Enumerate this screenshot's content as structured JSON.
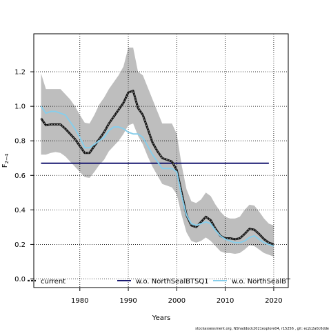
{
  "chart_data": {
    "type": "line",
    "xlabel": "Years",
    "ylabel_main": "F",
    "ylabel_sub": "2−4",
    "xlim": [
      1970.5,
      2023
    ],
    "ylim": [
      -0.05,
      1.42
    ],
    "xticks": [
      1980,
      1990,
      2000,
      2010,
      2020
    ],
    "yticks": [
      0.0,
      0.2,
      0.4,
      0.6,
      0.8,
      1.0,
      1.2
    ],
    "ytick_labels": [
      "0.0",
      "0.2",
      "0.4",
      "0.6",
      "0.8",
      "1.0",
      "1.2"
    ],
    "grid": true,
    "legend_position": "bottom",
    "x": [
      1972,
      1973,
      1974,
      1975,
      1976,
      1977,
      1978,
      1979,
      1980,
      1981,
      1982,
      1983,
      1984,
      1985,
      1986,
      1987,
      1988,
      1989,
      1990,
      1991,
      1992,
      1993,
      1994,
      1995,
      1996,
      1997,
      1998,
      1999,
      2000,
      2001,
      2002,
      2003,
      2004,
      2005,
      2006,
      2007,
      2008,
      2009,
      2010,
      2011,
      2012,
      2013,
      2014,
      2015,
      2016,
      2017,
      2018,
      2019,
      2020
    ],
    "series": [
      {
        "name": "current",
        "color": "#1a1a1a",
        "style": "dashed-thick",
        "values": [
          0.93,
          0.89,
          0.895,
          0.895,
          0.895,
          0.87,
          0.84,
          0.81,
          0.77,
          0.73,
          0.73,
          0.77,
          0.81,
          0.85,
          0.9,
          0.94,
          0.98,
          1.02,
          1.08,
          1.09,
          0.99,
          0.95,
          0.87,
          0.79,
          0.74,
          0.7,
          0.69,
          0.68,
          0.63,
          0.5,
          0.37,
          0.31,
          0.3,
          0.33,
          0.36,
          0.34,
          0.29,
          0.25,
          0.235,
          0.235,
          0.23,
          0.235,
          0.26,
          0.29,
          0.285,
          0.26,
          0.23,
          0.21,
          0.2
        ],
        "lower": [
          0.72,
          0.72,
          0.73,
          0.735,
          0.73,
          0.71,
          0.68,
          0.65,
          0.62,
          0.59,
          0.585,
          0.62,
          0.66,
          0.69,
          0.74,
          0.77,
          0.8,
          0.84,
          0.89,
          0.9,
          0.83,
          0.78,
          0.71,
          0.65,
          0.6,
          0.55,
          0.54,
          0.53,
          0.49,
          0.37,
          0.27,
          0.22,
          0.21,
          0.22,
          0.24,
          0.22,
          0.19,
          0.16,
          0.15,
          0.15,
          0.145,
          0.15,
          0.17,
          0.195,
          0.19,
          0.17,
          0.15,
          0.14,
          0.13
        ],
        "upper": [
          1.19,
          1.1,
          1.1,
          1.1,
          1.1,
          1.07,
          1.04,
          1.0,
          0.95,
          0.905,
          0.9,
          0.95,
          1.01,
          1.05,
          1.1,
          1.14,
          1.18,
          1.23,
          1.34,
          1.34,
          1.2,
          1.18,
          1.11,
          1.04,
          0.97,
          0.9,
          0.9,
          0.9,
          0.84,
          0.66,
          0.52,
          0.45,
          0.44,
          0.46,
          0.5,
          0.48,
          0.43,
          0.39,
          0.36,
          0.35,
          0.35,
          0.36,
          0.4,
          0.43,
          0.425,
          0.39,
          0.35,
          0.32,
          0.31
        ]
      },
      {
        "name": "w.o. NorthSealBTSQ1",
        "color": "#191970",
        "style": "solid",
        "values": [
          0.67,
          0.67,
          0.67,
          0.67,
          0.67,
          0.67,
          0.67,
          0.67,
          0.67,
          0.67,
          0.67,
          0.67,
          0.67,
          0.67,
          0.67,
          0.67,
          0.67,
          0.67,
          0.67,
          0.67,
          0.67,
          0.67,
          0.67,
          0.67,
          0.67,
          0.67,
          0.67,
          0.67,
          0.67,
          0.67,
          0.67,
          0.67,
          0.67,
          0.67,
          0.67,
          0.67,
          0.67,
          0.67,
          0.67,
          0.67,
          0.67,
          0.67,
          0.67,
          0.67,
          0.67,
          0.67,
          0.67,
          0.67,
          null
        ]
      },
      {
        "name": "w.o. NorthSealBT",
        "color": "#87ceeb",
        "style": "solid",
        "values": [
          1.0,
          0.96,
          0.97,
          0.97,
          0.96,
          0.95,
          0.91,
          0.87,
          0.82,
          0.76,
          0.76,
          0.78,
          0.8,
          0.82,
          0.86,
          0.88,
          0.88,
          0.87,
          0.85,
          0.84,
          0.84,
          0.82,
          0.77,
          0.72,
          0.68,
          0.64,
          0.64,
          0.64,
          0.62,
          0.48,
          0.37,
          0.32,
          0.31,
          0.32,
          0.33,
          0.32,
          0.28,
          0.25,
          0.23,
          0.22,
          0.21,
          0.21,
          0.22,
          0.24,
          0.25,
          0.23,
          0.21,
          0.2,
          0.19
        ]
      }
    ]
  },
  "footer_text": "stockassessment.org, NShaddock2021explore04, r15256 ,  git:  ec2c2a0c6dde"
}
